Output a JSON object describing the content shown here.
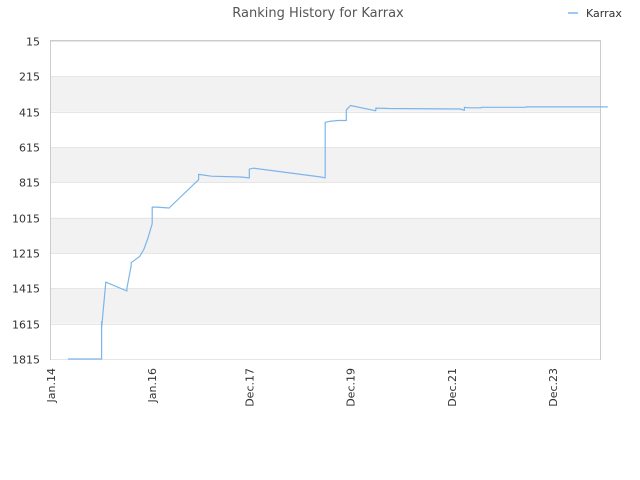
{
  "chart_data": {
    "type": "line",
    "title": "Ranking History for Karrax",
    "xlabel": "",
    "ylabel": "",
    "y_inverted": true,
    "ylim": [
      1815,
      15
    ],
    "y_ticks": [
      "15",
      "215",
      "415",
      "615",
      "815",
      "1015",
      "1215",
      "1415",
      "1615",
      "1815"
    ],
    "x_ticks": [
      "Jan.14",
      "Jan.16",
      "Dec.17",
      "Dec.19",
      "Dec.21",
      "Dec.23"
    ],
    "grid": true,
    "legend_position": "top-right",
    "series": [
      {
        "name": "Karrax",
        "color": "#7cb5ec",
        "points": [
          [
            "2014-05",
            1815
          ],
          [
            "2015-01",
            1815
          ],
          [
            "2015-01",
            1605
          ],
          [
            "2015-01",
            1640
          ],
          [
            "2015-02",
            1380
          ],
          [
            "2015-03",
            1390
          ],
          [
            "2015-07",
            1430
          ],
          [
            "2015-07",
            1415
          ],
          [
            "2015-08",
            1285
          ],
          [
            "2015-08",
            1270
          ],
          [
            "2015-10",
            1235
          ],
          [
            "2015-11",
            1195
          ],
          [
            "2015-11",
            1195
          ],
          [
            "2015-12",
            1130
          ],
          [
            "2016-01",
            1050
          ],
          [
            "2016-01",
            955
          ],
          [
            "2016-02",
            955
          ],
          [
            "2016-05",
            960
          ],
          [
            "2016-12",
            800
          ],
          [
            "2016-12",
            770
          ],
          [
            "2017-03",
            780
          ],
          [
            "2017-10",
            785
          ],
          [
            "2017-12",
            790
          ],
          [
            "2017-12",
            740
          ],
          [
            "2018-01",
            735
          ],
          [
            "2019-05",
            785
          ],
          [
            "2019-06",
            790
          ],
          [
            "2019-06",
            475
          ],
          [
            "2019-07",
            470
          ],
          [
            "2019-09",
            465
          ],
          [
            "2019-11",
            465
          ],
          [
            "2019-11",
            405
          ],
          [
            "2019-12",
            380
          ],
          [
            "2020-06",
            410
          ],
          [
            "2020-06",
            395
          ],
          [
            "2020-09",
            397
          ],
          [
            "2022-02",
            400
          ],
          [
            "2022-03",
            407
          ],
          [
            "2022-03",
            390
          ],
          [
            "2022-04",
            393
          ],
          [
            "2022-07",
            393
          ],
          [
            "2022-07",
            390
          ],
          [
            "2023-05",
            390
          ],
          [
            "2023-06",
            388
          ],
          [
            "2024-06",
            388
          ],
          [
            "2024-09",
            388
          ],
          [
            "2025-01",
            388
          ]
        ]
      }
    ]
  }
}
